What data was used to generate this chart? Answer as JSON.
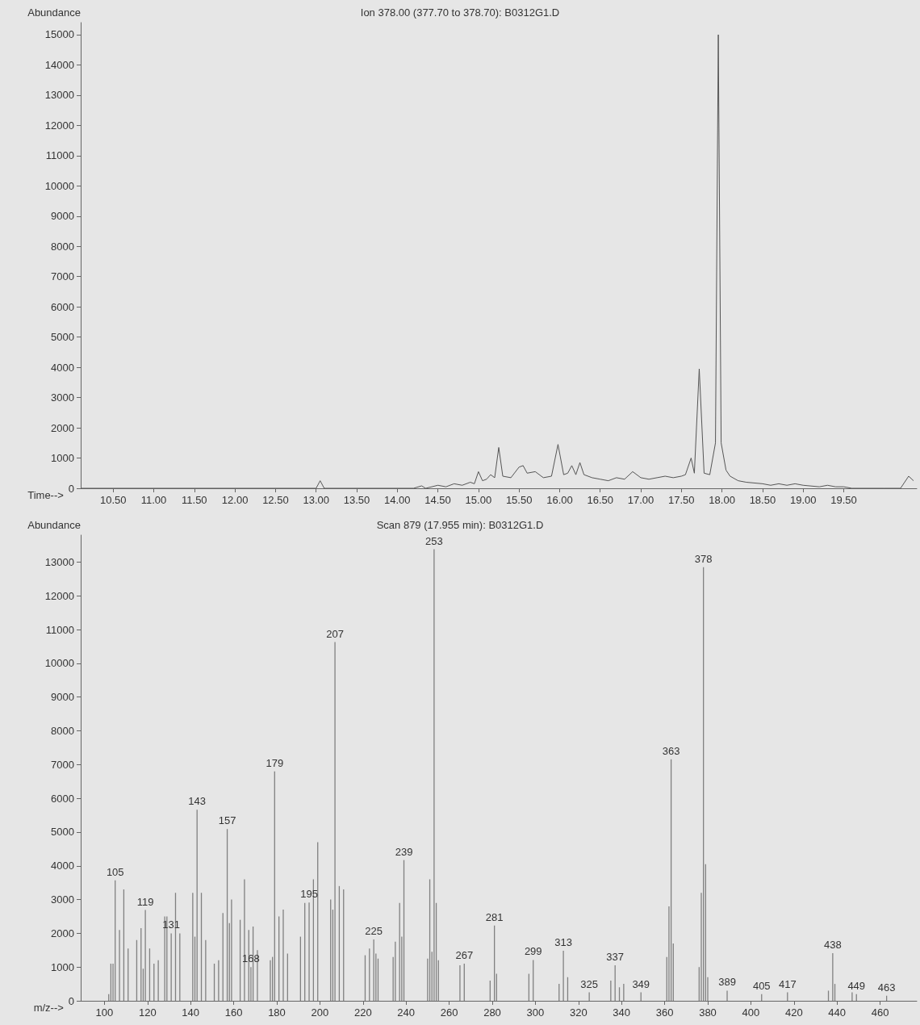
{
  "chart_data": [
    {
      "type": "line",
      "title": "Ion 378.00 (377.70 to 378.70): B0312G1.D",
      "xlabel": "Time-->",
      "ylabel": "Abundance",
      "color": "#555555",
      "marker": "none",
      "grid": false,
      "xlim": [
        10.1,
        20.4
      ],
      "ylim": [
        0,
        15400
      ],
      "xticks": [
        {
          "value": 10.5,
          "label": "10.50"
        },
        {
          "value": 11,
          "label": "11.00"
        },
        {
          "value": 11.5,
          "label": "11.50"
        },
        {
          "value": 12,
          "label": "12.00"
        },
        {
          "value": 12.5,
          "label": "12.50"
        },
        {
          "value": 13,
          "label": "13.00"
        },
        {
          "value": 13.5,
          "label": "13.50"
        },
        {
          "value": 14,
          "label": "14.00"
        },
        {
          "value": 14.5,
          "label": "14.50"
        },
        {
          "value": 15,
          "label": "15.00"
        },
        {
          "value": 15.5,
          "label": "15.50"
        },
        {
          "value": 16,
          "label": "16.00"
        },
        {
          "value": 16.5,
          "label": "16.50"
        },
        {
          "value": 17,
          "label": "17.00"
        },
        {
          "value": 17.5,
          "label": "17.50"
        },
        {
          "value": 18,
          "label": "18.00"
        },
        {
          "value": 18.5,
          "label": "18.50"
        },
        {
          "value": 19,
          "label": "19.00"
        },
        {
          "value": 19.5,
          "label": "19.50"
        }
      ],
      "yticks": [
        0,
        1000,
        2000,
        3000,
        4000,
        5000,
        6000,
        7000,
        8000,
        9000,
        10000,
        11000,
        12000,
        13000,
        14000,
        15000
      ],
      "x": [
        10.1,
        13.0,
        13.05,
        13.1,
        14.2,
        14.3,
        14.35,
        14.5,
        14.6,
        14.7,
        14.8,
        14.9,
        14.95,
        15.0,
        15.05,
        15.1,
        15.15,
        15.2,
        15.25,
        15.3,
        15.4,
        15.5,
        15.55,
        15.6,
        15.7,
        15.8,
        15.9,
        15.98,
        16.05,
        16.1,
        16.15,
        16.2,
        16.25,
        16.3,
        16.4,
        16.5,
        16.6,
        16.7,
        16.8,
        16.9,
        17.0,
        17.1,
        17.2,
        17.3,
        17.4,
        17.5,
        17.55,
        17.62,
        17.66,
        17.72,
        17.78,
        17.85,
        17.92,
        17.955,
        17.99,
        18.05,
        18.1,
        18.2,
        18.3,
        18.5,
        18.6,
        18.7,
        18.8,
        18.9,
        19.0,
        19.2,
        19.3,
        19.4,
        19.5,
        19.6,
        20.0,
        20.2,
        20.3,
        20.36
      ],
      "values": [
        0,
        0,
        250,
        0,
        0,
        80,
        0,
        100,
        50,
        150,
        100,
        200,
        150,
        550,
        250,
        300,
        450,
        350,
        1350,
        400,
        350,
        700,
        750,
        500,
        550,
        350,
        400,
        1450,
        450,
        500,
        750,
        450,
        850,
        450,
        350,
        300,
        250,
        350,
        300,
        550,
        350,
        300,
        350,
        400,
        350,
        400,
        450,
        1000,
        500,
        3950,
        500,
        450,
        1500,
        15000,
        1500,
        600,
        400,
        250,
        200,
        150,
        100,
        150,
        100,
        150,
        100,
        50,
        100,
        50,
        50,
        0,
        0,
        0,
        400,
        250
      ]
    },
    {
      "type": "bar",
      "title": "Scan 879 (17.955 min): B0312G1.D",
      "xlabel": "m/z-->",
      "ylabel": "Abundance",
      "color": "#808080",
      "grid": false,
      "xlim": [
        89,
        477
      ],
      "ylim": [
        0,
        13800
      ],
      "xticks": [
        100,
        120,
        140,
        160,
        180,
        200,
        220,
        240,
        260,
        280,
        300,
        320,
        340,
        360,
        380,
        400,
        420,
        440,
        460
      ],
      "yticks": [
        0,
        1000,
        2000,
        3000,
        4000,
        5000,
        6000,
        7000,
        8000,
        9000,
        10000,
        11000,
        12000,
        13000
      ],
      "x": [
        102,
        103,
        104,
        105,
        107,
        109,
        111,
        115,
        117,
        118,
        119,
        121,
        123,
        125,
        128,
        129,
        131,
        133,
        135,
        141,
        142,
        143,
        145,
        147,
        151,
        153,
        155,
        157,
        158,
        159,
        163,
        165,
        167,
        168,
        169,
        171,
        177,
        178,
        179,
        181,
        183,
        185,
        191,
        193,
        195,
        197,
        199,
        205,
        206,
        207,
        209,
        211,
        221,
        223,
        225,
        226,
        227,
        234,
        235,
        237,
        238,
        239,
        250,
        251,
        252,
        253,
        254,
        255,
        265,
        267,
        279,
        281,
        282,
        297,
        299,
        311,
        313,
        315,
        325,
        335,
        337,
        339,
        341,
        349,
        361,
        362,
        363,
        364,
        376,
        377,
        378,
        379,
        380,
        389,
        405,
        417,
        436,
        438,
        439,
        447,
        449,
        463
      ],
      "values": [
        200,
        1100,
        1100,
        3570,
        2100,
        3300,
        1550,
        1800,
        2150,
        950,
        2690,
        1550,
        1100,
        1200,
        2500,
        2500,
        2000,
        3200,
        2000,
        3200,
        1900,
        5660,
        3200,
        1800,
        1100,
        1200,
        2600,
        5090,
        2300,
        3000,
        2400,
        3600,
        2100,
        1000,
        2200,
        1500,
        1200,
        1300,
        6800,
        2500,
        2700,
        1400,
        1900,
        2900,
        2910,
        3600,
        4700,
        3000,
        2700,
        10630,
        3400,
        3300,
        1350,
        1550,
        1820,
        1400,
        1250,
        1300,
        1750,
        2900,
        1900,
        4170,
        1250,
        3600,
        1450,
        13380,
        2900,
        1200,
        1050,
        1100,
        600,
        2230,
        800,
        800,
        1210,
        500,
        1480,
        700,
        250,
        600,
        1050,
        400,
        500,
        250,
        1300,
        2800,
        7160,
        1700,
        1000,
        3200,
        12850,
        4050,
        700,
        300,
        200,
        250,
        300,
        1410,
        500,
        250,
        200,
        150
      ],
      "annotations": [
        {
          "text": "105",
          "x": 105,
          "y": 3570
        },
        {
          "text": "119",
          "x": 119,
          "y": 2690
        },
        {
          "text": "131",
          "x": 131,
          "y": 2000
        },
        {
          "text": "143",
          "x": 143,
          "y": 5660
        },
        {
          "text": "157",
          "x": 157,
          "y": 5090
        },
        {
          "text": "168",
          "x": 168,
          "y": 1000
        },
        {
          "text": "179",
          "x": 179,
          "y": 6800
        },
        {
          "text": "195",
          "x": 195,
          "y": 2910
        },
        {
          "text": "207",
          "x": 207,
          "y": 10630
        },
        {
          "text": "225",
          "x": 225,
          "y": 1820
        },
        {
          "text": "239",
          "x": 239,
          "y": 4170
        },
        {
          "text": "253",
          "x": 253,
          "y": 13380
        },
        {
          "text": "267",
          "x": 267,
          "y": 1100
        },
        {
          "text": "281",
          "x": 281,
          "y": 2230
        },
        {
          "text": "299",
          "x": 299,
          "y": 1210
        },
        {
          "text": "313",
          "x": 313,
          "y": 1480
        },
        {
          "text": "325",
          "x": 325,
          "y": 250
        },
        {
          "text": "337",
          "x": 337,
          "y": 1050
        },
        {
          "text": "349",
          "x": 349,
          "y": 250
        },
        {
          "text": "363",
          "x": 363,
          "y": 7160
        },
        {
          "text": "378",
          "x": 378,
          "y": 12850
        },
        {
          "text": "389",
          "x": 389,
          "y": 300
        },
        {
          "text": "405",
          "x": 405,
          "y": 200
        },
        {
          "text": "417",
          "x": 417,
          "y": 250
        },
        {
          "text": "438",
          "x": 438,
          "y": 1410
        },
        {
          "text": "449",
          "x": 449,
          "y": 200
        },
        {
          "text": "463",
          "x": 463,
          "y": 150
        }
      ]
    }
  ]
}
